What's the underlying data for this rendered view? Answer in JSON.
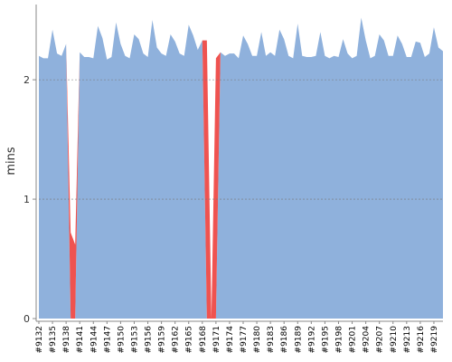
{
  "chart_data": {
    "type": "area",
    "y_label": "mins",
    "categories": [
      "#9132",
      null,
      null,
      "#9135",
      null,
      null,
      "#9138",
      null,
      null,
      "#9141",
      null,
      null,
      "#9144",
      null,
      null,
      "#9147",
      null,
      null,
      "#9150",
      null,
      null,
      "#9153",
      null,
      null,
      "#9156",
      null,
      null,
      "#9159",
      null,
      null,
      "#9162",
      null,
      null,
      "#9165",
      null,
      null,
      "#9168",
      null,
      null,
      "#9171",
      null,
      null,
      "#9174",
      null,
      null,
      "#9177",
      null,
      null,
      "#9180",
      null,
      null,
      "#9183",
      null,
      null,
      "#9186",
      null,
      null,
      "#9189",
      null,
      null,
      "#9192",
      null,
      null,
      "#9195",
      null,
      null,
      "#9198",
      null,
      null,
      "#9201",
      null,
      null,
      "#9204",
      null,
      null,
      "#9207",
      null,
      null,
      "#9210",
      null,
      null,
      "#9213",
      null,
      null,
      "#9216",
      null,
      null,
      "#9219",
      null,
      null
    ],
    "series": [
      {
        "color": "#8fb1dc",
        "values": [
          2.2,
          2.18,
          2.18,
          2.42,
          2.22,
          2.2,
          2.3,
          0,
          0,
          2.23,
          2.19,
          2.19,
          2.18,
          2.45,
          2.35,
          2.17,
          2.19,
          2.48,
          2.3,
          2.2,
          2.18,
          2.38,
          2.34,
          2.22,
          2.19,
          2.5,
          2.27,
          2.22,
          2.2,
          2.38,
          2.32,
          2.22,
          2.2,
          2.46,
          2.37,
          2.25,
          2.33,
          0,
          0,
          0,
          2.23,
          2.2,
          2.22,
          2.22,
          2.18,
          2.37,
          2.3,
          2.2,
          2.2,
          2.4,
          2.2,
          2.23,
          2.2,
          2.42,
          2.34,
          2.2,
          2.18,
          2.47,
          2.2,
          2.19,
          2.19,
          2.2,
          2.4,
          2.2,
          2.18,
          2.2,
          2.19,
          2.34,
          2.22,
          2.18,
          2.2,
          2.52,
          2.33,
          2.18,
          2.2,
          2.38,
          2.33,
          2.2,
          2.2,
          2.37,
          2.3,
          2.19,
          2.19,
          2.32,
          2.31,
          2.19,
          2.22,
          2.44,
          2.27,
          2.24
        ]
      },
      {
        "color": "#ef5350",
        "values": [
          0,
          0,
          0,
          0,
          0,
          0,
          0,
          0.72,
          0.62,
          0,
          0,
          0,
          0,
          0,
          0,
          0,
          0,
          0,
          0,
          0,
          0,
          0,
          0,
          0,
          0,
          0,
          0,
          0,
          0,
          0,
          0,
          0,
          0,
          0,
          0,
          0,
          0,
          2.33,
          0,
          2.18,
          0,
          0,
          0,
          0,
          0,
          0,
          0,
          0,
          0,
          0,
          0,
          0,
          0,
          0,
          0,
          0,
          0,
          0,
          0,
          0,
          0,
          0,
          0,
          0,
          0,
          0,
          0,
          0,
          0,
          0,
          0,
          0,
          0,
          0,
          0,
          0,
          0,
          0,
          0,
          0,
          0,
          0,
          0,
          0,
          0,
          0,
          0,
          0,
          0,
          0
        ]
      }
    ],
    "ylim": [
      0,
      2.63
    ],
    "yticks": [
      0,
      1,
      2
    ],
    "grid": true
  }
}
